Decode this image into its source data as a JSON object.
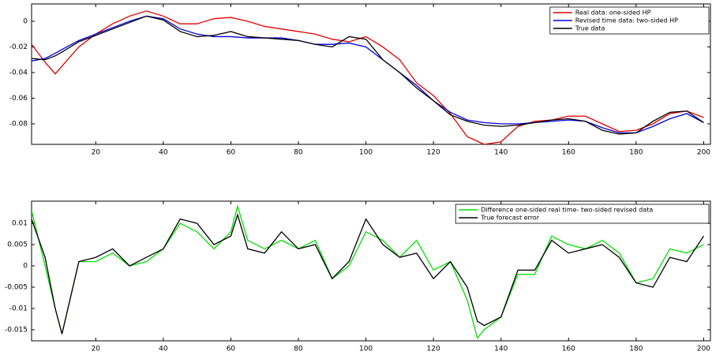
{
  "chart_data": [
    {
      "type": "line",
      "legend": "upper right",
      "grid": false,
      "x": [
        1,
        5,
        8,
        10,
        15,
        20,
        25,
        30,
        35,
        40,
        45,
        50,
        55,
        60,
        65,
        70,
        75,
        80,
        85,
        90,
        95,
        100,
        105,
        110,
        115,
        120,
        125,
        130,
        135,
        140,
        145,
        150,
        155,
        160,
        165,
        170,
        175,
        180,
        185,
        190,
        195,
        200
      ],
      "xlim": [
        1,
        202
      ],
      "xticks": [
        20,
        40,
        60,
        80,
        100,
        120,
        140,
        160,
        180,
        200
      ],
      "ylim": [
        -0.096,
        0.0135
      ],
      "yticks": [
        0,
        -0.02,
        -0.04,
        -0.06,
        -0.08
      ],
      "series": [
        {
          "name": "Real  data: one-sided HP",
          "color": "#e00000",
          "values": [
            -0.018,
            -0.032,
            -0.041,
            -0.035,
            -0.02,
            -0.01,
            -0.002,
            0.004,
            0.008,
            0.004,
            -0.002,
            -0.002,
            0.002,
            0.003,
            0.0,
            -0.004,
            -0.006,
            -0.008,
            -0.01,
            -0.014,
            -0.016,
            -0.012,
            -0.02,
            -0.03,
            -0.048,
            -0.058,
            -0.072,
            -0.09,
            -0.096,
            -0.094,
            -0.082,
            -0.078,
            -0.077,
            -0.074,
            -0.074,
            -0.08,
            -0.086,
            -0.085,
            -0.08,
            -0.072,
            -0.07,
            -0.075
          ]
        },
        {
          "name": "Revised time data: two-sided HP",
          "color": "#0000e0",
          "values": [
            -0.031,
            -0.029,
            -0.025,
            -0.022,
            -0.015,
            -0.01,
            -0.005,
            0.0,
            0.004,
            0.002,
            -0.006,
            -0.01,
            -0.012,
            -0.012,
            -0.013,
            -0.013,
            -0.013,
            -0.015,
            -0.018,
            -0.018,
            -0.017,
            -0.02,
            -0.03,
            -0.04,
            -0.05,
            -0.062,
            -0.071,
            -0.077,
            -0.079,
            -0.08,
            -0.08,
            -0.079,
            -0.078,
            -0.077,
            -0.078,
            -0.083,
            -0.087,
            -0.087,
            -0.082,
            -0.076,
            -0.072,
            -0.079
          ]
        },
        {
          "name": "True data",
          "color": "#000000",
          "values": [
            -0.029,
            -0.03,
            -0.027,
            -0.024,
            -0.016,
            -0.011,
            -0.006,
            -0.001,
            0.004,
            0.001,
            -0.008,
            -0.012,
            -0.011,
            -0.008,
            -0.012,
            -0.013,
            -0.014,
            -0.015,
            -0.018,
            -0.02,
            -0.012,
            -0.014,
            -0.03,
            -0.04,
            -0.052,
            -0.062,
            -0.073,
            -0.078,
            -0.081,
            -0.082,
            -0.081,
            -0.079,
            -0.077,
            -0.076,
            -0.078,
            -0.085,
            -0.088,
            -0.087,
            -0.078,
            -0.071,
            -0.07,
            -0.079
          ]
        }
      ]
    },
    {
      "type": "line",
      "legend": "upper right",
      "grid": false,
      "x": [
        1,
        5,
        8,
        10,
        15,
        20,
        25,
        30,
        35,
        40,
        45,
        50,
        55,
        60,
        62,
        65,
        70,
        75,
        80,
        85,
        90,
        95,
        100,
        105,
        110,
        115,
        120,
        125,
        130,
        133,
        135,
        140,
        145,
        150,
        155,
        160,
        165,
        170,
        175,
        180,
        185,
        190,
        195,
        200
      ],
      "xlim": [
        1,
        202
      ],
      "xticks": [
        20,
        40,
        60,
        80,
        100,
        120,
        140,
        160,
        180,
        200
      ],
      "ylim": [
        -0.0176,
        0.0152
      ],
      "yticks": [
        0.01,
        0.005,
        0,
        -0.005,
        -0.01,
        -0.015
      ],
      "series": [
        {
          "name": "Difference one-sided real time- two-sided revised data",
          "color": "#00e000",
          "values": [
            0.013,
            0.0,
            -0.01,
            -0.016,
            0.001,
            0.001,
            0.003,
            0.0,
            0.001,
            0.004,
            0.01,
            0.008,
            0.004,
            0.008,
            0.014,
            0.006,
            0.004,
            0.006,
            0.004,
            0.006,
            -0.003,
            0.0,
            0.008,
            0.006,
            0.002,
            0.006,
            -0.001,
            0.001,
            -0.008,
            -0.017,
            -0.015,
            -0.012,
            -0.002,
            -0.002,
            0.007,
            0.005,
            0.004,
            0.006,
            0.003,
            -0.004,
            -0.003,
            0.004,
            0.003,
            0.005
          ]
        },
        {
          "name": "True forecast error",
          "color": "#000000",
          "values": [
            0.011,
            0.002,
            -0.01,
            -0.016,
            0.001,
            0.002,
            0.004,
            0.0,
            0.002,
            0.004,
            0.011,
            0.01,
            0.005,
            0.007,
            0.012,
            0.004,
            0.003,
            0.008,
            0.004,
            0.005,
            -0.003,
            0.001,
            0.011,
            0.005,
            0.002,
            0.003,
            -0.003,
            0.001,
            -0.005,
            -0.013,
            -0.014,
            -0.012,
            -0.001,
            -0.001,
            0.006,
            0.003,
            0.004,
            0.005,
            0.002,
            -0.004,
            -0.005,
            0.002,
            0.001,
            0.007
          ]
        }
      ]
    }
  ]
}
